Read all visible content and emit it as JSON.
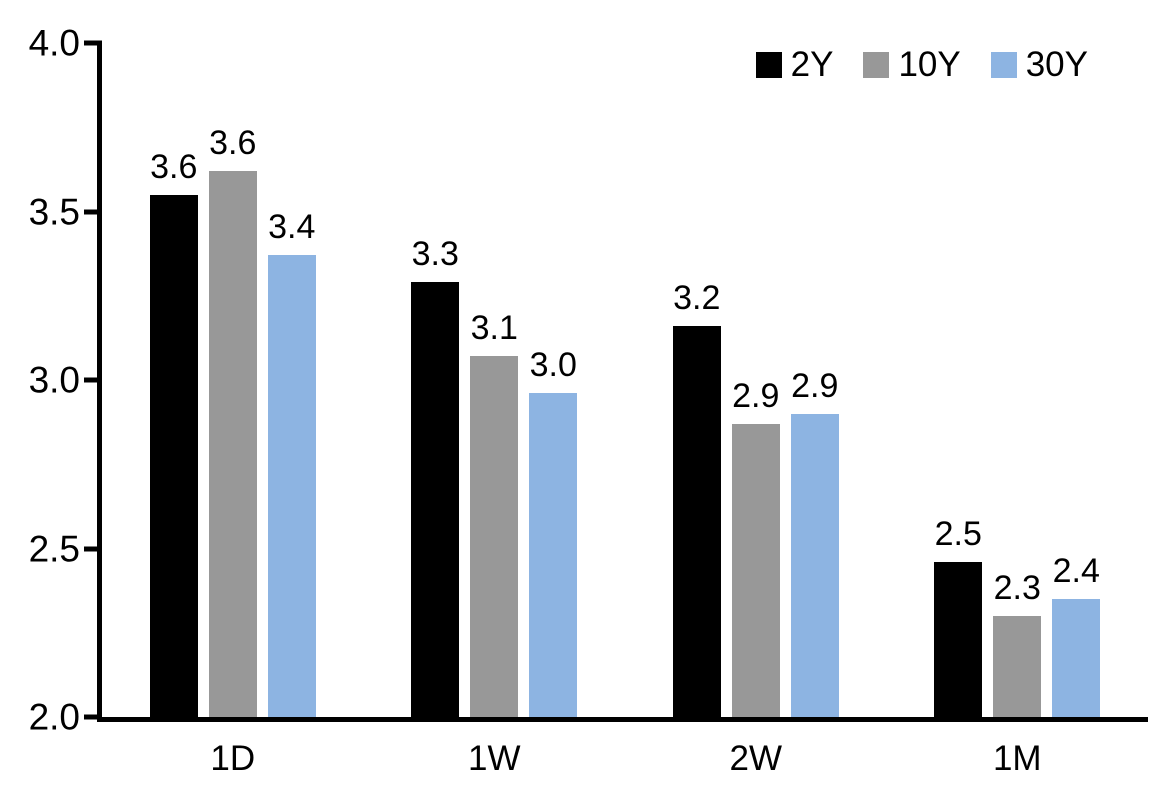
{
  "chart_data": {
    "type": "bar",
    "title": "",
    "xlabel": "",
    "ylabel": "",
    "categories": [
      "1D",
      "1W",
      "2W",
      "1M"
    ],
    "series": [
      {
        "name": "2Y",
        "color": "#000000",
        "values": [
          3.55,
          3.29,
          3.16,
          2.46
        ],
        "labels": [
          "3.6",
          "3.3",
          "3.2",
          "2.5"
        ]
      },
      {
        "name": "10Y",
        "color": "#989898",
        "values": [
          3.62,
          3.07,
          2.87,
          2.3
        ],
        "labels": [
          "3.6",
          "3.1",
          "2.9",
          "2.3"
        ]
      },
      {
        "name": "30Y",
        "color": "#8DB4E2",
        "values": [
          3.37,
          2.96,
          2.9,
          2.35
        ],
        "labels": [
          "3.4",
          "3.0",
          "2.9",
          "2.4"
        ]
      }
    ],
    "ylim": [
      2.0,
      4.0
    ],
    "ytick_values": [
      4.0,
      3.5,
      3.0,
      2.5,
      2.0
    ],
    "ytick_labels": [
      "4.0",
      "3.5",
      "3.0",
      "2.5",
      "2.0"
    ],
    "legend_position": "top-right",
    "grid": false,
    "axis_color": "#000000",
    "background": "#ffffff",
    "data_label_color": "#000000"
  }
}
